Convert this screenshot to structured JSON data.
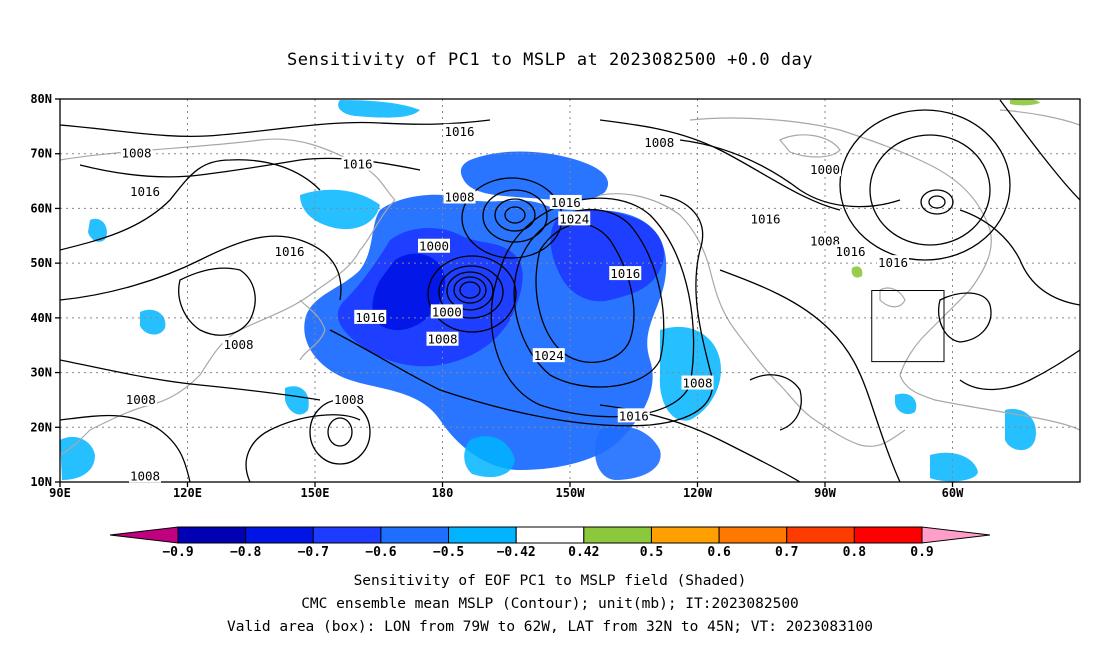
{
  "title": "Sensitivity of PC1 to MSLP at 2023082500 +0.0 day",
  "lat_labels": [
    "80N",
    "70N",
    "60N",
    "50N",
    "40N",
    "30N",
    "20N",
    "10N"
  ],
  "lon_labels": [
    "90E",
    "120E",
    "150E",
    "180",
    "150W",
    "120W",
    "90W",
    "60W"
  ],
  "contour_labels": [
    {
      "text": "1016",
      "lon": 184,
      "lat": 74
    },
    {
      "text": "1008",
      "lon": 108,
      "lat": 70
    },
    {
      "text": "1016",
      "lon": 110,
      "lat": 63
    },
    {
      "text": "1016",
      "lon": 160,
      "lat": 68
    },
    {
      "text": "1008",
      "lon": 184,
      "lat": 62
    },
    {
      "text": "1008",
      "lon": 231,
      "lat": 72
    },
    {
      "text": "1000",
      "lon": 270,
      "lat": 67
    },
    {
      "text": "1016",
      "lon": 209,
      "lat": 61
    },
    {
      "text": "1024",
      "lon": 211,
      "lat": 58
    },
    {
      "text": "1016",
      "lon": 256,
      "lat": 58
    },
    {
      "text": "1000",
      "lon": 178,
      "lat": 53
    },
    {
      "text": "1016",
      "lon": 144,
      "lat": 52
    },
    {
      "text": "1008",
      "lon": 270,
      "lat": 54
    },
    {
      "text": "1016",
      "lon": 276,
      "lat": 52
    },
    {
      "text": "1016",
      "lon": 286,
      "lat": 50
    },
    {
      "text": "1016",
      "lon": 223,
      "lat": 48
    },
    {
      "text": "1000",
      "lon": 181,
      "lat": 41
    },
    {
      "text": "1016",
      "lon": 163,
      "lat": 40
    },
    {
      "text": "1008",
      "lon": 180,
      "lat": 36
    },
    {
      "text": "1008",
      "lon": 132,
      "lat": 35
    },
    {
      "text": "1024",
      "lon": 205,
      "lat": 33
    },
    {
      "text": "1008",
      "lon": 240,
      "lat": 28
    },
    {
      "text": "1008",
      "lon": 109,
      "lat": 25
    },
    {
      "text": "1008",
      "lon": 158,
      "lat": 25
    },
    {
      "text": "1016",
      "lon": 225,
      "lat": 22
    },
    {
      "text": "1008",
      "lon": 110,
      "lat": 11
    }
  ],
  "valid_box": {
    "lon_w": 79,
    "lon_e": 62,
    "lat_s": 32,
    "lat_n": 45
  },
  "colorbar": {
    "labels": [
      "-0.9",
      "-0.8",
      "-0.7",
      "-0.6",
      "-0.5",
      "-0.42",
      "0.42",
      "0.5",
      "0.6",
      "0.7",
      "0.8",
      "0.9"
    ],
    "colors": [
      "#c0007f",
      "#0000b4",
      "#0014e6",
      "#1e3cff",
      "#1e6eff",
      "#00b4ff",
      "#ffffff",
      "#8cc83c",
      "#ffa000",
      "#ff7800",
      "#ff3c00",
      "#ff0000",
      "#ff9ec8"
    ]
  },
  "captions": {
    "line1": "Sensitivity of EOF PC1 to MSLP field (Shaded)",
    "line2": "CMC ensemble mean MSLP (Contour); unit(mb); IT:2023082500",
    "line3": "Valid area (box): LON from 79W to 62W, LAT from 32N to 45N; VT: 2023083100"
  }
}
